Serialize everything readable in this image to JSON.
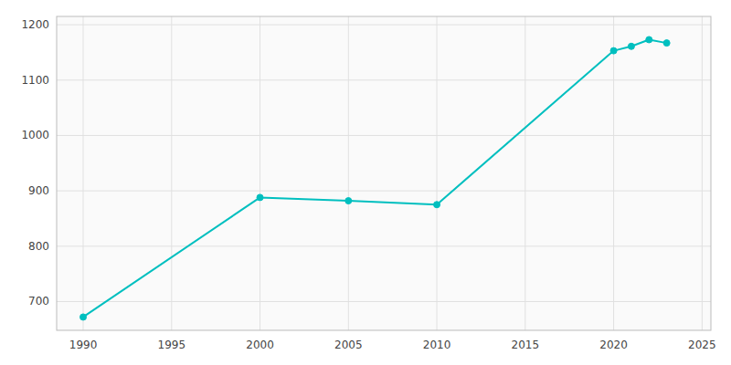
{
  "chart_data": {
    "type": "line",
    "x": [
      1990,
      2000,
      2005,
      2010,
      2020,
      2021,
      2022,
      2023
    ],
    "values": [
      672,
      888,
      882,
      875,
      1153,
      1161,
      1173,
      1167
    ],
    "color": "#00bfbf",
    "marker": "circle",
    "xlim": [
      1988.5,
      2025.5
    ],
    "ylim": [
      648,
      1215
    ],
    "xticks": [
      1990,
      1995,
      2000,
      2005,
      2010,
      2015,
      2020,
      2025
    ],
    "yticks": [
      700,
      800,
      900,
      1000,
      1100,
      1200
    ],
    "grid": true
  }
}
